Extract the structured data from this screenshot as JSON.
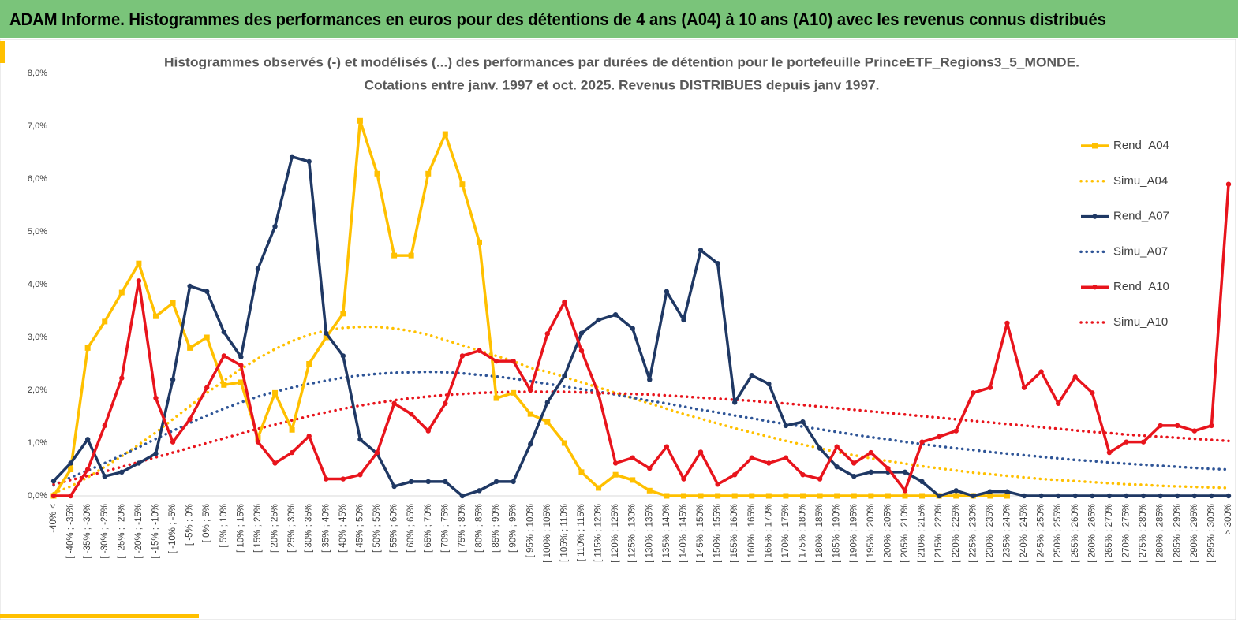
{
  "chart_data": {
    "type": "line",
    "banner": "ADAM Informe. Histogrammes des performances en euros pour des détentions de 4 ans (A04) à 10 ans (A10) avec les revenus connus distribués",
    "title": "Histogrammes observés (-) et modélisés (...) des performances  par durées de détention pour  le portefeuille PrinceETF_Regions3_5_MONDE.",
    "subtitle": "Cotations  entre janv. 1997 et oct. 2025. Revenus DISTRIBUES depuis janv 1997.",
    "categories": [
      "-40% <",
      "[ -40% ; -35%",
      "[ -35% ; -30%",
      "[ -30% ; -25%",
      "[ -25% ; -20%",
      "[ -20% ; -15%",
      "[ -15% ; -10%",
      "[ -10% ; -5%",
      "[ -5% ; 0%",
      "[ 0% ; 5%",
      "[ 5% ; 10%",
      "[ 10% ; 15%",
      "[ 15% ; 20%",
      "[ 20% ; 25%",
      "[ 25% ; 30%",
      "[ 30% ; 35%",
      "[ 35% ; 40%",
      "[ 40% ; 45%",
      "[ 45% ; 50%",
      "[ 50% ; 55%",
      "[ 55% ; 60%",
      "[ 60% ; 65%",
      "[ 65% ; 70%",
      "[ 70% ; 75%",
      "[ 75% ; 80%",
      "[ 80% ; 85%",
      "[ 85% ; 90%",
      "[ 90% ; 95%",
      "[ 95% ; 100%",
      "[ 100% ; 105%",
      "[ 105% ; 110%",
      "[ 110% ; 115%",
      "[ 115% ; 120%",
      "[ 120% ; 125%",
      "[ 125% ; 130%",
      "[ 130% ; 135%",
      "[ 135% ; 140%",
      "[ 140% ; 145%",
      "[ 145% ; 150%",
      "[ 150% ; 155%",
      "[ 155% ; 160%",
      "[ 160% ; 165%",
      "[ 165% ; 170%",
      "[ 170% ; 175%",
      "[ 175% ; 180%",
      "[ 180% ; 185%",
      "[ 185% ; 190%",
      "[ 190% ; 195%",
      "[ 195% ; 200%",
      "[ 200% ; 205%",
      "[ 205% ; 210%",
      "[ 210% ; 215%",
      "[ 215% ; 220%",
      "[ 220% ; 225%",
      "[ 225% ; 230%",
      "[ 230% ; 235%",
      "[ 235% ; 240%",
      "[ 240% ; 245%",
      "[ 245% ; 250%",
      "[ 250% ; 255%",
      "[ 255% ; 260%",
      "[ 260% ; 265%",
      "[ 265% ; 270%",
      "[ 270% ; 275%",
      "[ 275% ; 280%",
      "[ 280% ; 285%",
      "[ 285% ; 290%",
      "[ 290% ; 295%",
      "[ 295% ; 300%",
      "> 300%"
    ],
    "ylim": [
      0,
      8
    ],
    "yticks": [
      {
        "value": 0,
        "label": "0,0%"
      },
      {
        "value": 1,
        "label": "1,0%"
      },
      {
        "value": 2,
        "label": "2,0%"
      },
      {
        "value": 3,
        "label": "3,0%"
      },
      {
        "value": 4,
        "label": "4,0%"
      },
      {
        "value": 5,
        "label": "5,0%"
      },
      {
        "value": 6,
        "label": "6,0%"
      },
      {
        "value": 7,
        "label": "7,0%"
      },
      {
        "value": 8,
        "label": "8,0%"
      }
    ],
    "grid": false,
    "legend": "right",
    "series": [
      {
        "name": "Rend_A04",
        "color": "#ffc000",
        "style": "solid",
        "marker": "square",
        "values": [
          0,
          0.5,
          2.8,
          3.3,
          3.85,
          4.4,
          3.4,
          3.65,
          2.8,
          3.0,
          2.1,
          2.15,
          1.1,
          1.95,
          1.25,
          2.5,
          3.0,
          3.45,
          7.1,
          6.1,
          4.55,
          4.55,
          6.1,
          6.85,
          5.9,
          4.8,
          1.85,
          1.95,
          1.55,
          1.4,
          1.0,
          0.45,
          0.15,
          0.4,
          0.3,
          0.1,
          0,
          0,
          0,
          0,
          0,
          0,
          0,
          0,
          0,
          0,
          0,
          0,
          0,
          0,
          0,
          0,
          0,
          0,
          0,
          0,
          0,
          null,
          null,
          null,
          null,
          null,
          null,
          null,
          null,
          null,
          null,
          null,
          null,
          null
        ]
      },
      {
        "name": "Simu_A04",
        "color": "#ffc000",
        "style": "dotted",
        "marker": "none",
        "values": [
          0.05,
          0.18,
          0.35,
          0.55,
          0.75,
          0.97,
          1.2,
          1.45,
          1.7,
          1.95,
          2.18,
          2.4,
          2.6,
          2.78,
          2.93,
          3.05,
          3.13,
          3.18,
          3.2,
          3.2,
          3.17,
          3.12,
          3.05,
          2.95,
          2.85,
          2.75,
          2.65,
          2.55,
          2.42,
          2.35,
          2.25,
          2.15,
          2.05,
          1.95,
          1.85,
          1.75,
          1.65,
          1.55,
          1.46,
          1.37,
          1.28,
          1.2,
          1.12,
          1.04,
          0.97,
          0.9,
          0.83,
          0.77,
          0.71,
          0.66,
          0.61,
          0.56,
          0.52,
          0.48,
          0.44,
          0.41,
          0.38,
          0.35,
          0.32,
          0.3,
          0.28,
          0.26,
          0.24,
          0.22,
          0.21,
          0.19,
          0.18,
          0.17,
          0.16,
          0.15
        ]
      },
      {
        "name": "Rend_A07",
        "color": "#1f3864",
        "style": "solid",
        "marker": "circle",
        "values": [
          0.28,
          0.62,
          1.07,
          0.37,
          0.45,
          0.62,
          0.8,
          2.2,
          3.97,
          3.87,
          3.1,
          2.63,
          4.3,
          5.1,
          6.42,
          6.33,
          3.08,
          2.65,
          1.07,
          0.8,
          0.18,
          0.27,
          0.27,
          0.27,
          0,
          0.1,
          0.27,
          0.27,
          0.98,
          1.77,
          2.27,
          3.08,
          3.33,
          3.43,
          3.17,
          2.2,
          3.87,
          3.33,
          4.65,
          4.4,
          1.77,
          2.28,
          2.12,
          1.33,
          1.4,
          0.9,
          0.55,
          0.37,
          0.45,
          0.45,
          0.45,
          0.27,
          0,
          0.1,
          0,
          0.08,
          0.08,
          0,
          0,
          0,
          0,
          0,
          0,
          0,
          0,
          0,
          0,
          0,
          0,
          0
        ]
      },
      {
        "name": "Simu_A07",
        "color": "#2f5597",
        "style": "dotted",
        "marker": "none",
        "values": [
          0.2,
          0.35,
          0.48,
          0.62,
          0.77,
          0.92,
          1.08,
          1.23,
          1.38,
          1.52,
          1.65,
          1.77,
          1.88,
          1.97,
          2.05,
          2.12,
          2.18,
          2.24,
          2.28,
          2.31,
          2.33,
          2.34,
          2.35,
          2.34,
          2.32,
          2.29,
          2.26,
          2.22,
          2.17,
          2.12,
          2.07,
          2.02,
          1.97,
          1.92,
          1.86,
          1.8,
          1.75,
          1.69,
          1.63,
          1.58,
          1.52,
          1.47,
          1.41,
          1.36,
          1.31,
          1.26,
          1.21,
          1.16,
          1.11,
          1.07,
          1.02,
          0.98,
          0.94,
          0.9,
          0.87,
          0.83,
          0.8,
          0.77,
          0.74,
          0.71,
          0.68,
          0.66,
          0.63,
          0.61,
          0.59,
          0.57,
          0.55,
          0.53,
          0.51,
          0.5
        ]
      },
      {
        "name": "Rend_A10",
        "color": "#e8141c",
        "style": "solid",
        "marker": "circle",
        "values": [
          0,
          0,
          0.5,
          1.33,
          2.23,
          4.07,
          1.85,
          1.02,
          1.45,
          2.05,
          2.65,
          2.47,
          1.02,
          0.62,
          0.82,
          1.13,
          0.32,
          0.32,
          0.4,
          0.82,
          1.75,
          1.55,
          1.23,
          1.75,
          2.65,
          2.75,
          2.55,
          2.55,
          2.0,
          3.07,
          3.67,
          2.75,
          1.93,
          0.62,
          0.72,
          0.52,
          0.93,
          0.32,
          0.83,
          0.22,
          0.4,
          0.72,
          0.62,
          0.72,
          0.4,
          0.32,
          0.93,
          0.62,
          0.82,
          0.52,
          0.1,
          1.02,
          1.12,
          1.23,
          1.95,
          2.05,
          3.27,
          2.05,
          2.35,
          1.75,
          2.25,
          1.95,
          0.82,
          1.02,
          1.02,
          1.33,
          1.33,
          1.23,
          1.33,
          5.9
        ]
      },
      {
        "name": "Simu_A10",
        "color": "#e8141c",
        "style": "dotted",
        "marker": "none",
        "values": [
          0.22,
          0.3,
          0.38,
          0.46,
          0.55,
          0.64,
          0.73,
          0.82,
          0.91,
          1.0,
          1.09,
          1.18,
          1.27,
          1.35,
          1.43,
          1.51,
          1.58,
          1.65,
          1.71,
          1.76,
          1.81,
          1.85,
          1.88,
          1.91,
          1.93,
          1.95,
          1.96,
          1.97,
          1.97,
          1.97,
          1.97,
          1.96,
          1.95,
          1.94,
          1.93,
          1.92,
          1.9,
          1.88,
          1.86,
          1.84,
          1.82,
          1.8,
          1.77,
          1.75,
          1.72,
          1.69,
          1.66,
          1.63,
          1.6,
          1.57,
          1.54,
          1.51,
          1.48,
          1.45,
          1.42,
          1.39,
          1.36,
          1.33,
          1.3,
          1.27,
          1.24,
          1.21,
          1.19,
          1.16,
          1.14,
          1.12,
          1.1,
          1.08,
          1.06,
          1.04
        ]
      }
    ]
  }
}
